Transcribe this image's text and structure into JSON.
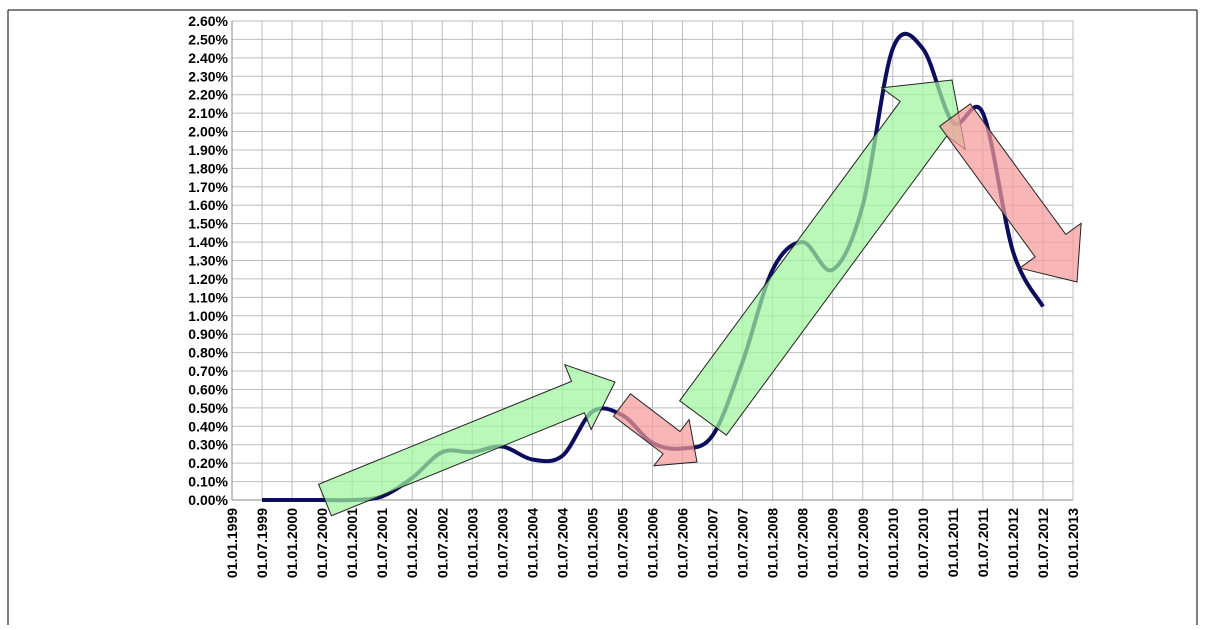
{
  "chart_data": {
    "type": "line",
    "categories": [
      "01.01.1999",
      "01.07.1999",
      "01.01.2000",
      "01.07.2000",
      "01.01.2001",
      "01.07.2001",
      "01.01.2002",
      "01.07.2002",
      "01.01.2003",
      "01.07.2003",
      "01.01.2004",
      "01.07.2004",
      "01.01.2005",
      "01.07.2005",
      "01.01.2006",
      "01.07.2006",
      "01.01.2007",
      "01.07.2007",
      "01.01.2008",
      "01.07.2008",
      "01.01.2009",
      "01.07.2009",
      "01.01.2010",
      "01.07.2010",
      "01.01.2011",
      "01.07.2011",
      "01.01.2012",
      "01.07.2012",
      "01.01.2013"
    ],
    "series": [
      {
        "color": "#0d0d5e",
        "values": [
          null,
          0,
          0,
          0,
          0,
          0.02,
          0.12,
          0.26,
          0.26,
          0.29,
          0.22,
          0.24,
          0.48,
          0.46,
          0.31,
          0.28,
          0.35,
          0.75,
          1.25,
          1.4,
          1.25,
          1.6,
          2.45,
          2.45,
          2.05,
          2.1,
          1.35,
          1.05,
          null
        ]
      }
    ],
    "ylim": [
      0,
      2.6
    ],
    "yticks": [
      {
        "value": 0,
        "label": "0.00%"
      },
      {
        "value": 0.1,
        "label": "0.10%"
      },
      {
        "value": 0.2,
        "label": "0.20%"
      },
      {
        "value": 0.3,
        "label": "0.30%"
      },
      {
        "value": 0.4,
        "label": "0.40%"
      },
      {
        "value": 0.5,
        "label": "0.50%"
      },
      {
        "value": 0.6,
        "label": "0.60%"
      },
      {
        "value": 0.7,
        "label": "0.70%"
      },
      {
        "value": 0.8,
        "label": "0.80%"
      },
      {
        "value": 0.9,
        "label": "0.90%"
      },
      {
        "value": 1.0,
        "label": "1.00%"
      },
      {
        "value": 1.1,
        "label": "1.10%"
      },
      {
        "value": 1.2,
        "label": "1.20%"
      },
      {
        "value": 1.3,
        "label": "1.30%"
      },
      {
        "value": 1.4,
        "label": "1.40%"
      },
      {
        "value": 1.5,
        "label": "1.50%"
      },
      {
        "value": 1.6,
        "label": "1.60%"
      },
      {
        "value": 1.7,
        "label": "1.70%"
      },
      {
        "value": 1.8,
        "label": "1.80%"
      },
      {
        "value": 1.9,
        "label": "1.90%"
      },
      {
        "value": 2.0,
        "label": "2.00%"
      },
      {
        "value": 2.1,
        "label": "2.10%"
      },
      {
        "value": 2.2,
        "label": "2.20%"
      },
      {
        "value": 2.3,
        "label": "2.30%"
      },
      {
        "value": 2.4,
        "label": "2.40%"
      },
      {
        "value": 2.5,
        "label": "2.50%"
      },
      {
        "value": 2.6,
        "label": "2.60%"
      }
    ],
    "grid": true
  }
}
